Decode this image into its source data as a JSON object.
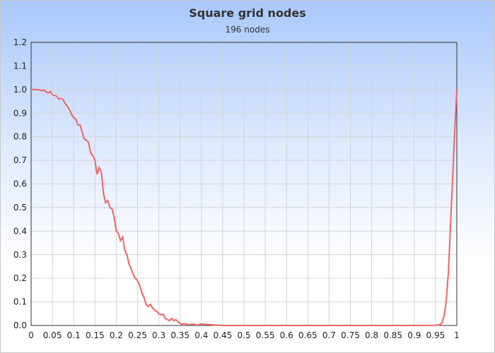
{
  "chart_data": {
    "type": "line",
    "title": "Square grid nodes",
    "subtitle": "196 nodes",
    "xlabel": "",
    "ylabel": "",
    "xlim": [
      0,
      1
    ],
    "ylim": [
      0,
      1.2
    ],
    "grid": true,
    "line_color": "#f06464",
    "x_ticks": [
      "0",
      "0.05",
      "0.1",
      "0.15",
      "0.2",
      "0.25",
      "0.3",
      "0.35",
      "0.4",
      "0.45",
      "0.5",
      "0.55",
      "0.6",
      "0.65",
      "0.7",
      "0.75",
      "0.8",
      "0.85",
      "0.9",
      "0.95",
      "1"
    ],
    "y_ticks": [
      "0.0",
      "0.1",
      "0.2",
      "0.3",
      "0.4",
      "0.5",
      "0.6",
      "0.7",
      "0.8",
      "0.9",
      "1.0",
      "1.1",
      "1.2"
    ],
    "series": [
      {
        "x": [
          0,
          0.01,
          0.02,
          0.025,
          0.03,
          0.035,
          0.04,
          0.045,
          0.05,
          0.055,
          0.06,
          0.065,
          0.07,
          0.075,
          0.08,
          0.085,
          0.09,
          0.095,
          0.1,
          0.105,
          0.11,
          0.115,
          0.12,
          0.125,
          0.13,
          0.135,
          0.14,
          0.145,
          0.15,
          0.155,
          0.16,
          0.165,
          0.17,
          0.175,
          0.18,
          0.185,
          0.19,
          0.195,
          0.2,
          0.205,
          0.21,
          0.215,
          0.22,
          0.225,
          0.23,
          0.235,
          0.24,
          0.245,
          0.25,
          0.255,
          0.26,
          0.265,
          0.27,
          0.275,
          0.28,
          0.285,
          0.29,
          0.295,
          0.3,
          0.305,
          0.31,
          0.315,
          0.32,
          0.325,
          0.33,
          0.335,
          0.34,
          0.345,
          0.35,
          0.355,
          0.36,
          0.37,
          0.38,
          0.39,
          0.4,
          0.45,
          0.5,
          0.6,
          0.7,
          0.8,
          0.9,
          0.95,
          0.96,
          0.965,
          0.97,
          0.975,
          0.98,
          0.985,
          0.99,
          0.995,
          1.0
        ],
        "y": [
          1.0,
          1.0,
          0.998,
          0.995,
          0.998,
          0.99,
          0.985,
          0.992,
          0.978,
          0.975,
          0.972,
          0.96,
          0.962,
          0.958,
          0.94,
          0.93,
          0.915,
          0.895,
          0.88,
          0.875,
          0.85,
          0.85,
          0.82,
          0.79,
          0.785,
          0.775,
          0.73,
          0.72,
          0.7,
          0.64,
          0.67,
          0.65,
          0.56,
          0.52,
          0.53,
          0.5,
          0.495,
          0.46,
          0.4,
          0.39,
          0.36,
          0.375,
          0.32,
          0.3,
          0.26,
          0.24,
          0.215,
          0.2,
          0.19,
          0.17,
          0.14,
          0.12,
          0.09,
          0.08,
          0.09,
          0.075,
          0.065,
          0.06,
          0.05,
          0.045,
          0.048,
          0.03,
          0.025,
          0.02,
          0.03,
          0.02,
          0.025,
          0.015,
          0.01,
          0.005,
          0.008,
          0.003,
          0.005,
          0.002,
          0.006,
          0.0,
          0.0,
          0.0,
          0.0,
          0.0,
          0.0,
          0.001,
          0.003,
          0.01,
          0.04,
          0.1,
          0.22,
          0.42,
          0.62,
          0.82,
          1.0
        ]
      }
    ]
  }
}
